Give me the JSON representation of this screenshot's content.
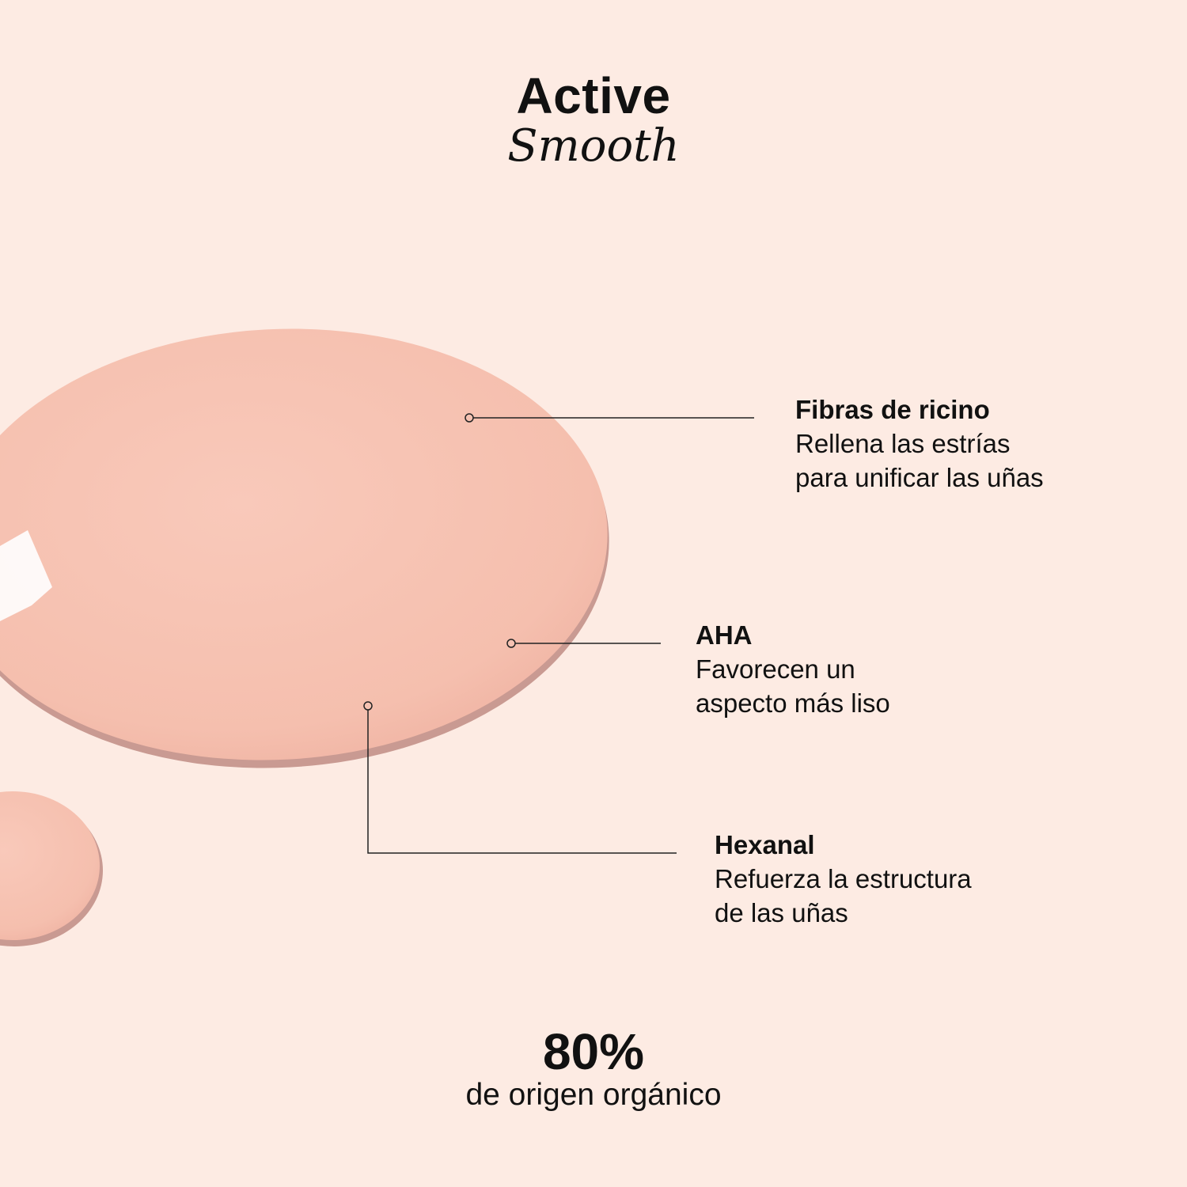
{
  "header": {
    "title": "Active",
    "subtitle": "Smooth"
  },
  "callouts": [
    {
      "name": "Fibras de ricino",
      "line1": "Rellena las estrías",
      "line2": "para unificar las uñas"
    },
    {
      "name": "AHA",
      "line1": "Favorecen un",
      "line2": "aspecto más liso"
    },
    {
      "name": "Hexanal",
      "line1": "Refuerza la estructura",
      "line2": "de las uñas"
    }
  ],
  "stat": {
    "value": "80%",
    "label": "de origen orgánico"
  },
  "colors": {
    "background": "#fdebe3",
    "product": "#f5c2b2",
    "text": "#111111"
  }
}
